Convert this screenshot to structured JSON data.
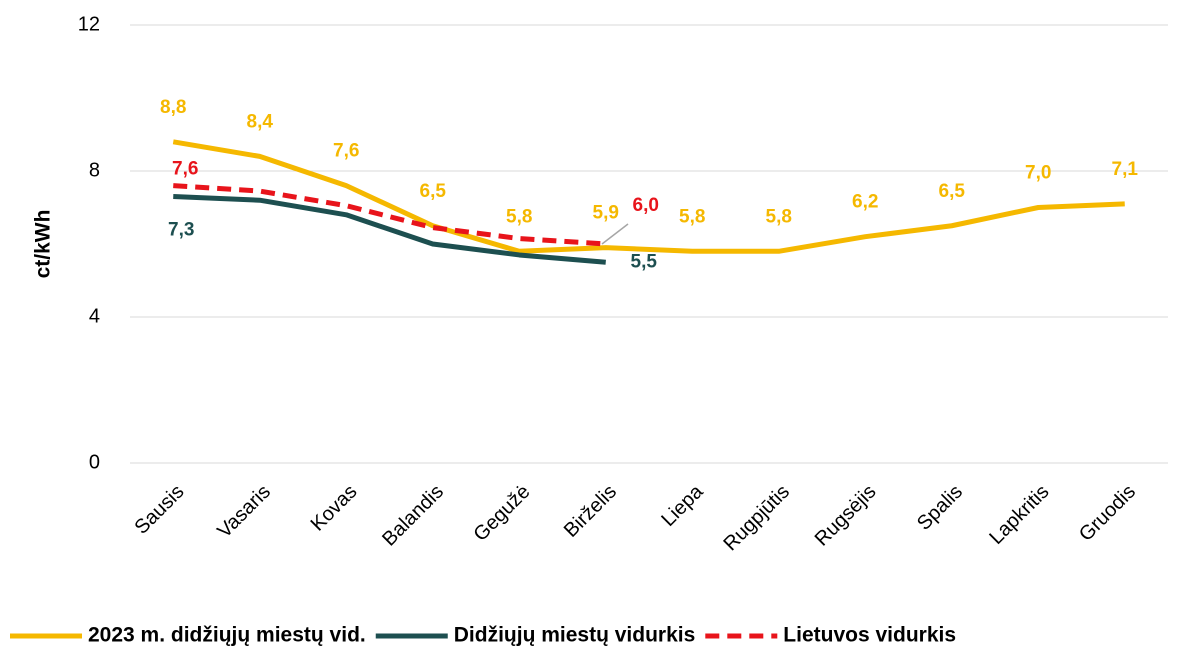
{
  "chart_data": {
    "type": "line",
    "y_label": "ct/kWh",
    "categories": [
      "Sausis",
      "Vasaris",
      "Kovas",
      "Balandis",
      "Gegužė",
      "Birželis",
      "Liepa",
      "Rugpjūtis",
      "Rugsėjis",
      "Spalis",
      "Lapkritis",
      "Gruodis"
    ],
    "series": [
      {
        "name": "2023 m. didžiųjų miestų vid.",
        "color": "#f5b800",
        "dash": false,
        "values": [
          8.8,
          8.4,
          7.6,
          6.5,
          5.8,
          5.9,
          5.8,
          5.8,
          6.2,
          6.5,
          7.0,
          7.1
        ],
        "value_labels": [
          "8,8",
          "8,4",
          "7,6",
          "6,5",
          "5,8",
          "5,9",
          "5,8",
          "5,8",
          "6,2",
          "6,5",
          "7,0",
          "7,1"
        ]
      },
      {
        "name": "Didžiųjų miestų vidurkis",
        "color": "#1d4f50",
        "dash": false,
        "values": [
          7.3,
          7.2,
          6.8,
          6.0,
          5.7,
          5.5,
          null,
          null,
          null,
          null,
          null,
          null
        ],
        "value_labels": [
          "7,3",
          null,
          null,
          null,
          null,
          "5,5",
          null,
          null,
          null,
          null,
          null,
          null
        ]
      },
      {
        "name": "Lietuvos vidurkis",
        "color": "#e8141b",
        "dash": true,
        "values": [
          7.6,
          7.45,
          7.05,
          6.45,
          6.15,
          6.0,
          null,
          null,
          null,
          null,
          null,
          null
        ],
        "value_labels": [
          "7,6",
          null,
          null,
          null,
          null,
          "6,0",
          null,
          null,
          null,
          null,
          null,
          null
        ]
      }
    ],
    "ylim": [
      0,
      12
    ],
    "yticks": [
      0,
      4,
      8,
      12
    ],
    "grid": true,
    "legend": "bottom"
  }
}
